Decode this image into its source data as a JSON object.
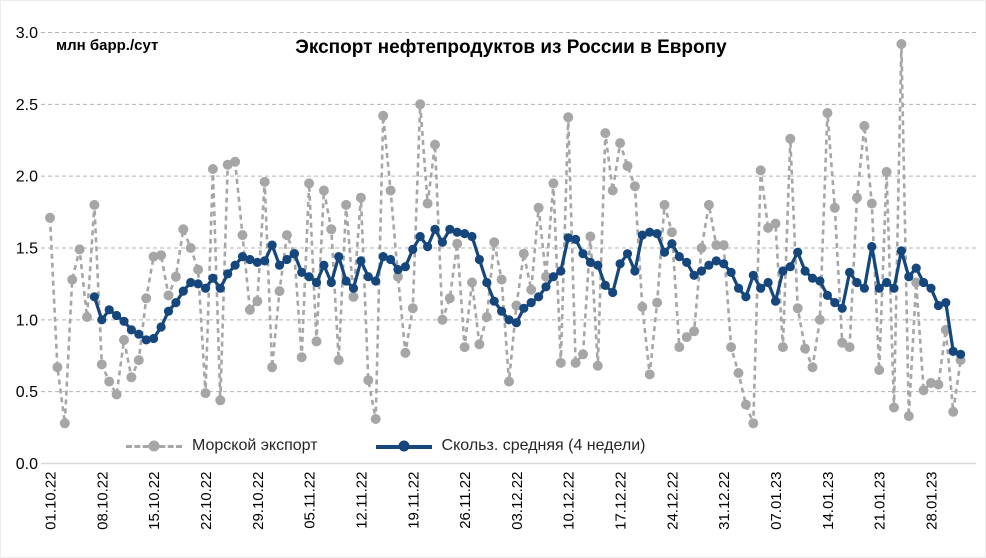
{
  "chart": {
    "title": "Экспорт нефтепродуктов из России в Европу",
    "unit_label": "млн барр./сут"
  },
  "legend": {
    "items": [
      {
        "label": "Морской экспорт",
        "color": "#a6a6a6",
        "marker": "gray-dashed-line-with-dot"
      },
      {
        "label": "Скольз. средняя (4 недели)",
        "color": "#15477d",
        "marker": "blue-solid-line-with-dot"
      }
    ]
  },
  "chart_data": {
    "type": "line",
    "title": "Экспорт нефтепродуктов из России в Европу",
    "xlabel": "",
    "ylabel": "млн барр./сут",
    "ylim": [
      0.0,
      3.0
    ],
    "y_tick_step": 0.5,
    "y_ticks": [
      "3.0",
      "2.5",
      "2.0",
      "1.5",
      "1.0",
      "0.5",
      "0.0"
    ],
    "grid": "horizontal-dashed",
    "legend_position": "bottom-inside",
    "x_start_date": "01.10.22",
    "x_frequency": "daily",
    "x_tick_every_days": 7,
    "x_tick_labels": [
      "01.10.22",
      "08.10.22",
      "15.10.22",
      "22.10.22",
      "29.10.22",
      "05.11.22",
      "12.11.22",
      "19.11.22",
      "26.11.22",
      "03.12.22",
      "10.12.22",
      "17.12.22",
      "24.12.22",
      "31.12.22",
      "07.01.23",
      "14.01.23",
      "21.01.23",
      "28.01.23"
    ],
    "series": [
      {
        "name": "Морской экспорт",
        "color": "#a6a6a6",
        "style": "dashed",
        "marker": "circle",
        "start_index": 0,
        "values": [
          1.71,
          0.67,
          0.28,
          1.28,
          1.49,
          1.02,
          1.8,
          0.69,
          0.57,
          0.48,
          0.86,
          0.6,
          0.72,
          1.15,
          1.44,
          1.45,
          1.17,
          1.3,
          1.63,
          1.5,
          1.35,
          0.49,
          2.05,
          0.44,
          2.08,
          2.1,
          1.59,
          1.07,
          1.13,
          1.96,
          0.67,
          1.2,
          1.59,
          1.46,
          0.74,
          1.95,
          0.85,
          1.9,
          1.63,
          0.72,
          1.8,
          1.16,
          1.85,
          0.58,
          0.31,
          2.42,
          1.9,
          1.3,
          0.77,
          1.08,
          2.5,
          1.81,
          2.22,
          1.0,
          1.15,
          1.53,
          0.81,
          1.26,
          0.83,
          1.02,
          1.54,
          1.28,
          0.57,
          1.1,
          1.46,
          1.21,
          1.78,
          1.3,
          1.95,
          0.7,
          2.41,
          0.7,
          0.76,
          1.58,
          0.68,
          2.3,
          1.9,
          2.23,
          2.07,
          1.93,
          1.09,
          0.62,
          1.12,
          1.8,
          1.61,
          0.81,
          0.88,
          0.92,
          1.5,
          1.8,
          1.52,
          1.52,
          0.81,
          0.63,
          0.41,
          0.28,
          2.04,
          1.64,
          1.67,
          0.81,
          2.26,
          1.08,
          0.8,
          0.67,
          1.0,
          2.44,
          1.78,
          0.84,
          0.81,
          1.85,
          2.35,
          1.81,
          0.65,
          2.03,
          0.39,
          2.92,
          0.33,
          1.26,
          0.51,
          0.56,
          0.55,
          0.93,
          0.36,
          0.72
        ]
      },
      {
        "name": "Скольз. средняя (4 недели)",
        "color": "#15477d",
        "style": "solid",
        "marker": "circle",
        "start_index": 6,
        "values": [
          1.16,
          1.0,
          1.07,
          1.03,
          0.99,
          0.93,
          0.9,
          0.86,
          0.87,
          0.95,
          1.06,
          1.12,
          1.2,
          1.26,
          1.25,
          1.22,
          1.29,
          1.22,
          1.32,
          1.38,
          1.44,
          1.42,
          1.4,
          1.41,
          1.52,
          1.38,
          1.42,
          1.46,
          1.33,
          1.3,
          1.26,
          1.38,
          1.26,
          1.44,
          1.27,
          1.22,
          1.41,
          1.3,
          1.27,
          1.44,
          1.42,
          1.35,
          1.37,
          1.49,
          1.58,
          1.51,
          1.63,
          1.54,
          1.63,
          1.61,
          1.6,
          1.58,
          1.42,
          1.26,
          1.13,
          1.06,
          1.0,
          0.98,
          1.08,
          1.12,
          1.16,
          1.23,
          1.3,
          1.34,
          1.57,
          1.56,
          1.46,
          1.4,
          1.38,
          1.24,
          1.19,
          1.39,
          1.46,
          1.34,
          1.59,
          1.61,
          1.6,
          1.47,
          1.53,
          1.44,
          1.4,
          1.31,
          1.34,
          1.38,
          1.41,
          1.39,
          1.33,
          1.22,
          1.16,
          1.31,
          1.22,
          1.26,
          1.13,
          1.34,
          1.37,
          1.47,
          1.34,
          1.29,
          1.27,
          1.17,
          1.12,
          1.08,
          1.33,
          1.26,
          1.22,
          1.51,
          1.22,
          1.26,
          1.22,
          1.48,
          1.3,
          1.36,
          1.26,
          1.22,
          1.1,
          1.12,
          0.78,
          0.76
        ]
      }
    ]
  }
}
